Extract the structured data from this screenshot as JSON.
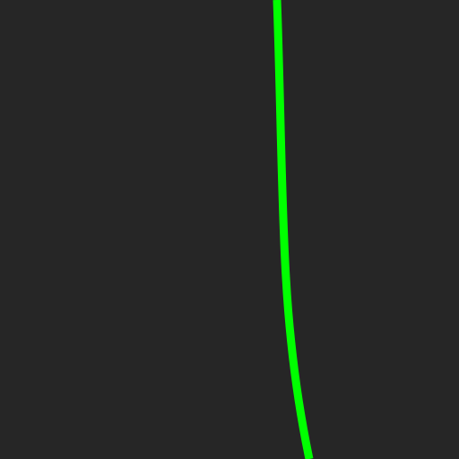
{
  "colors": {
    "background": "#262626",
    "curve": "#00ff00"
  },
  "scene": {
    "element": "curved-line",
    "icon": "green-curve"
  }
}
